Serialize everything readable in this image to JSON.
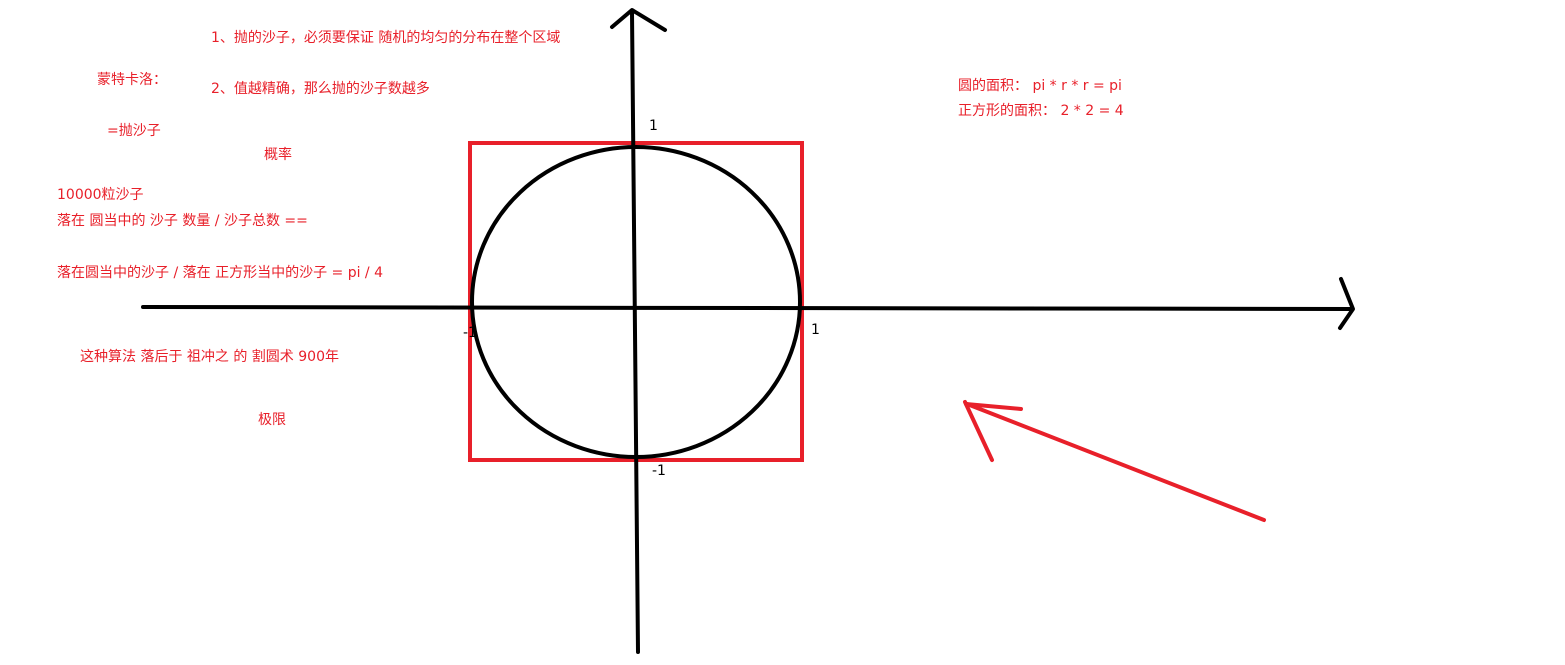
{
  "colors": {
    "ink": "#000000",
    "annotation": "#e8202a",
    "background": "#ffffff"
  },
  "notes": {
    "rule1": "1、抛的沙子，必须要保证 随机的均匀的分布在整个区域",
    "rule2": "2、值越精确，那么抛的沙子数越多",
    "monte_carlo": "蒙特卡洛：",
    "throw_sand": "=抛沙子",
    "probability": "概率",
    "sand_count": "10000粒沙子",
    "ratio_total": "落在 圆当中的 沙子 数量  / 沙子总数  ==",
    "ratio_square": "落在圆当中的沙子 / 落在 正方形当中的沙子  =  pi / 4",
    "history": "这种算法 落后于 祖冲之 的  割圆术   900年",
    "limit": "极限",
    "circle_area": "圆的面积：  pi * r * r =  pi",
    "square_area": "正方形的面积：  2 * 2 = 4"
  },
  "axis_ticks": {
    "y_top": "1",
    "x_right": "1",
    "x_left": "-1",
    "y_bottom": "-1"
  },
  "shapes": {
    "axes": "cartesian-axes-with-arrows",
    "circle": "unit-circle",
    "square": "bounding-square",
    "annotation_arrow": "red-hand-drawn-arrow"
  }
}
